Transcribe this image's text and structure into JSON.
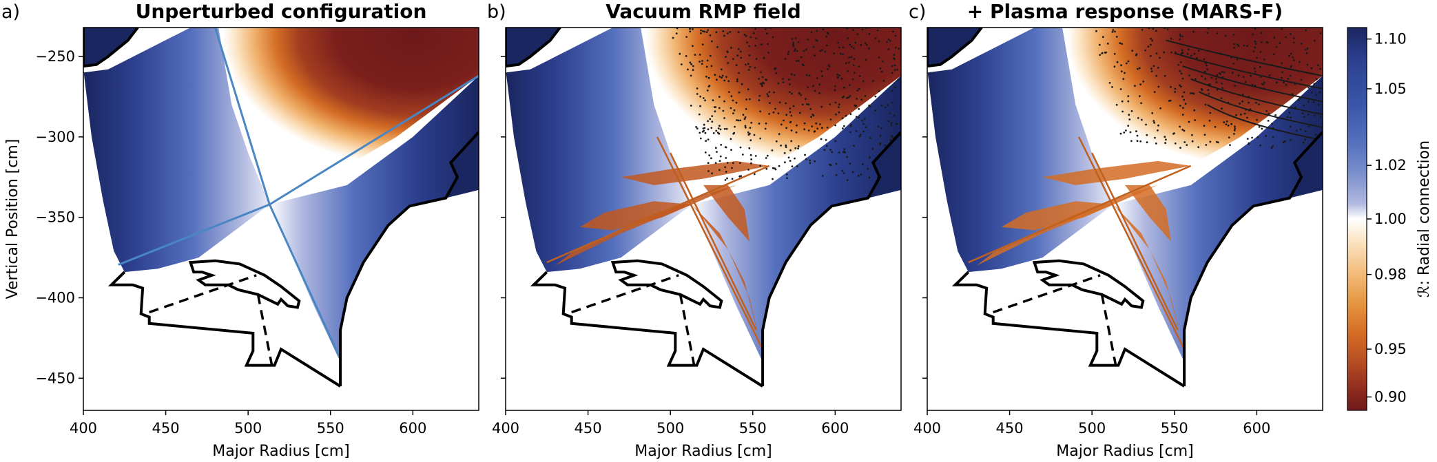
{
  "figure": {
    "panels": [
      {
        "letter": "a)",
        "title": "Unperturbed configuration"
      },
      {
        "letter": "b)",
        "title": "Vacuum RMP field"
      },
      {
        "letter": "c)",
        "title": "+ Plasma response (MARS-F)"
      }
    ],
    "x_axis": {
      "label": "Major Radius [cm]",
      "ticks": [
        "400",
        "450",
        "500",
        "550",
        "600"
      ],
      "range": [
        400,
        640
      ]
    },
    "y_axis": {
      "label": "Vertical Position [cm]",
      "ticks": [
        "−250",
        "−300",
        "−350",
        "−400",
        "−450"
      ],
      "range": [
        -470,
        -232
      ]
    },
    "colorbar": {
      "label": "ℛ: Radial connection",
      "ticks": [
        "1.10",
        "1.05",
        "1.02",
        "1.00",
        "0.98",
        "0.95",
        "0.90"
      ],
      "colors": [
        "#1a2660",
        "#2c3f8e",
        "#3a55a8",
        "#5570bd",
        "#7a8fcc",
        "#b1b9e0",
        "#ffffff",
        "#fbe2c0",
        "#f3bd7c",
        "#e5953f",
        "#d46c24",
        "#b44a22",
        "#8c2a1f",
        "#6e1a1a"
      ]
    },
    "colors": {
      "separatrix": "#4a86c4",
      "wall": "#000000",
      "orbit_points": "#1a1a1a"
    }
  }
}
